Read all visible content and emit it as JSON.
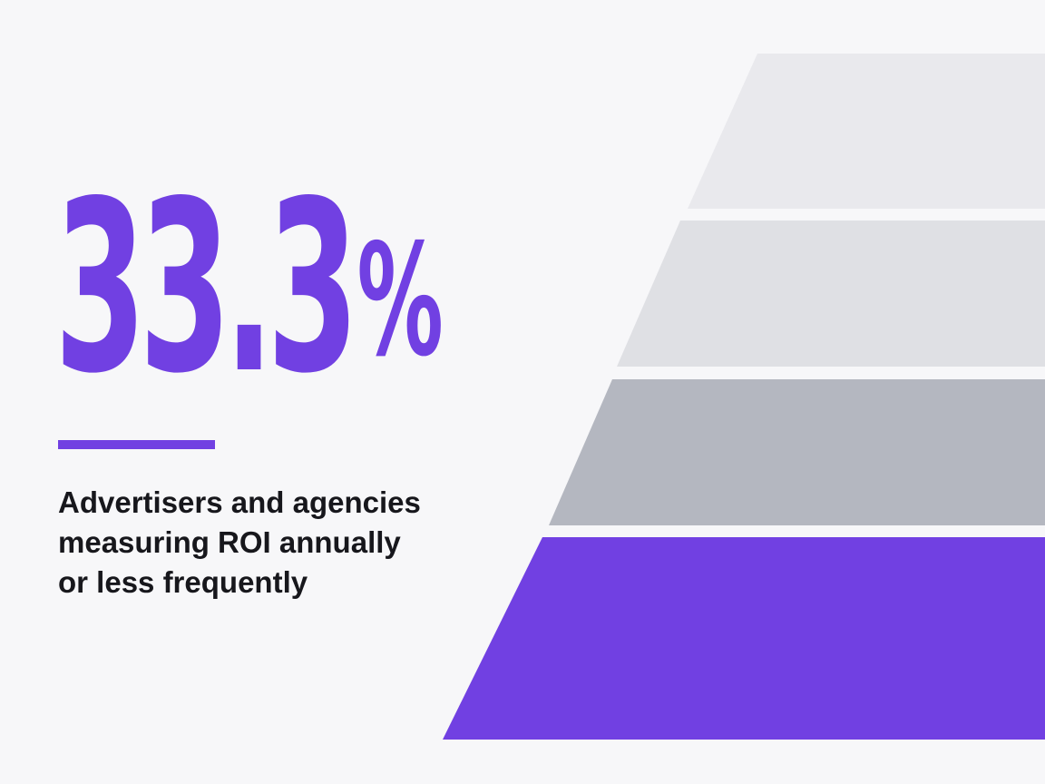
{
  "stat": {
    "value": "33.3",
    "unit": "%"
  },
  "caption": {
    "lines": [
      "Advertisers and agencies",
      "measuring ROI annually",
      "or less frequently"
    ]
  },
  "colors": {
    "accent": "#7140e2",
    "text": "#17171c",
    "background": "#f7f7f9",
    "tier_1": "#e9e9ed",
    "tier_2": "#dfe0e4",
    "tier_3": "#b4b7c0",
    "tier_4": "#7140e2"
  },
  "pyramid": {
    "tiers": 4,
    "highlighted_tier": 4
  }
}
